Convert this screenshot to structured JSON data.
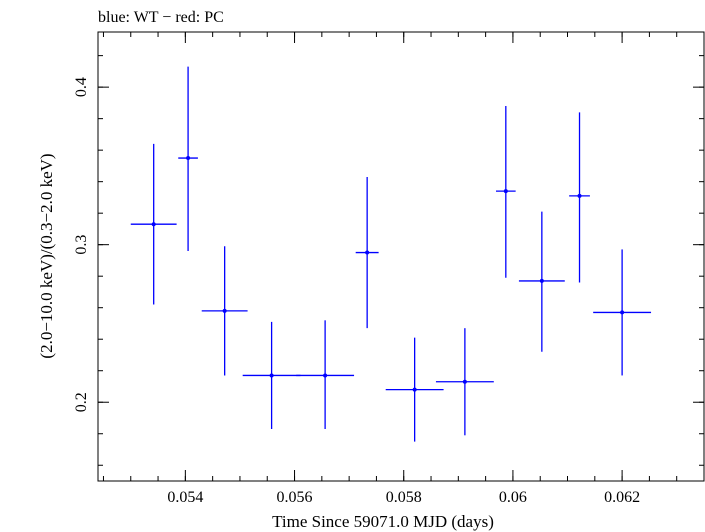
{
  "chart_data": {
    "type": "scatter",
    "title": "blue: WT − red: PC",
    "xlabel": "Time Since 59071.0 MJD (days)",
    "ylabel": "(2.0−10.0 keV)/(0.3−2.0 keV)",
    "xlim": [
      0.0524,
      0.0635
    ],
    "ylim": [
      0.15,
      0.435
    ],
    "x_ticks": [
      0.054,
      0.056,
      0.058,
      0.06,
      0.062
    ],
    "x_tick_labels": [
      "0.054",
      "0.056",
      "0.058",
      "0.06",
      "0.062"
    ],
    "y_ticks": [
      0.2,
      0.3,
      0.4
    ],
    "y_tick_labels": [
      "0.2",
      "0.3",
      "0.4"
    ],
    "series": [
      {
        "name": "WT",
        "color": "#0000ff",
        "points": [
          {
            "x": 0.05342,
            "y": 0.313,
            "xerr": 0.00042,
            "ylo": 0.262,
            "yhi": 0.364
          },
          {
            "x": 0.05405,
            "y": 0.355,
            "xerr": 0.00018,
            "ylo": 0.296,
            "yhi": 0.413
          },
          {
            "x": 0.05472,
            "y": 0.258,
            "xerr": 0.00042,
            "ylo": 0.217,
            "yhi": 0.299
          },
          {
            "x": 0.05558,
            "y": 0.217,
            "xerr": 0.00053,
            "ylo": 0.183,
            "yhi": 0.251
          },
          {
            "x": 0.05656,
            "y": 0.217,
            "xerr": 0.00053,
            "ylo": 0.183,
            "yhi": 0.252
          },
          {
            "x": 0.05733,
            "y": 0.295,
            "xerr": 0.00021,
            "ylo": 0.247,
            "yhi": 0.343
          },
          {
            "x": 0.0582,
            "y": 0.208,
            "xerr": 0.00053,
            "ylo": 0.175,
            "yhi": 0.241
          },
          {
            "x": 0.05912,
            "y": 0.213,
            "xerr": 0.00053,
            "ylo": 0.179,
            "yhi": 0.247
          },
          {
            "x": 0.05987,
            "y": 0.334,
            "xerr": 0.00018,
            "ylo": 0.279,
            "yhi": 0.388
          },
          {
            "x": 0.06053,
            "y": 0.277,
            "xerr": 0.00042,
            "ylo": 0.232,
            "yhi": 0.321
          },
          {
            "x": 0.06122,
            "y": 0.331,
            "xerr": 0.00019,
            "ylo": 0.276,
            "yhi": 0.384
          },
          {
            "x": 0.062,
            "y": 0.257,
            "xerr": 0.00053,
            "ylo": 0.217,
            "yhi": 0.297
          }
        ]
      }
    ]
  }
}
